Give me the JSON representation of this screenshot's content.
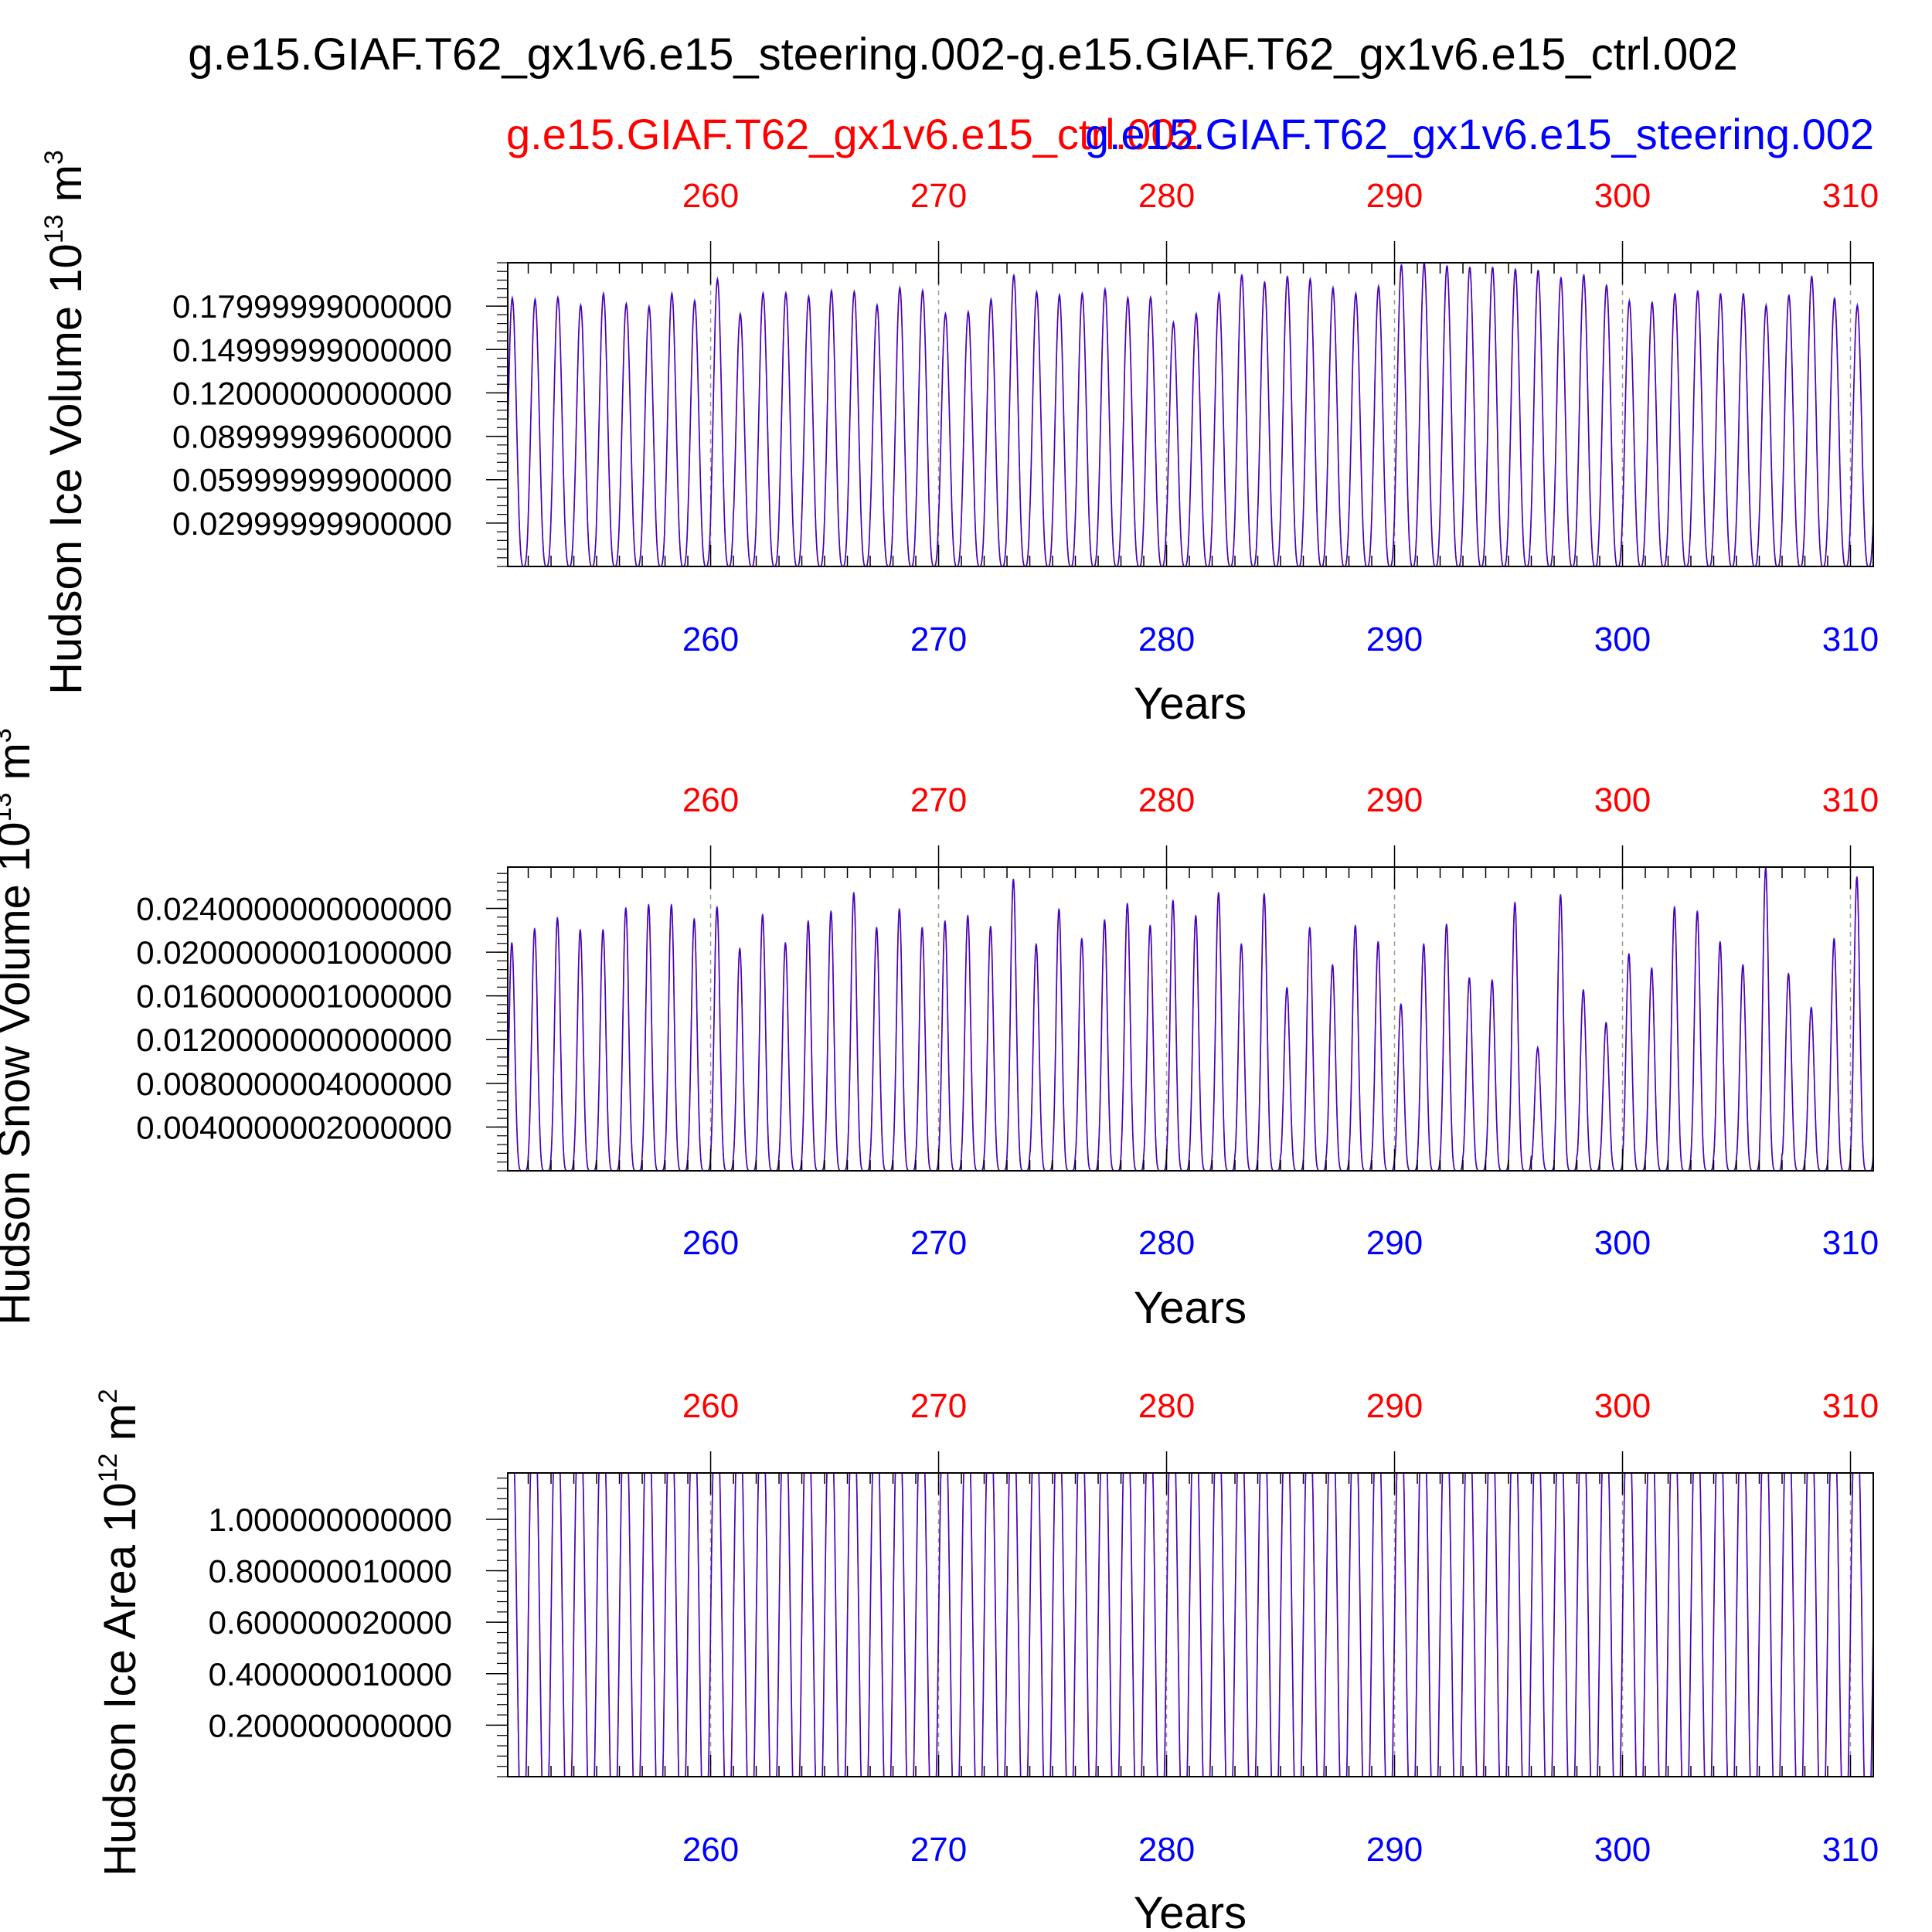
{
  "title": "g.e15.GIAF.T62_gx1v6.e15_steering.002-g.e15.GIAF.T62_gx1v6.e15_ctrl.002",
  "legend": {
    "ctrl_label": "g.e15.GIAF.T62_gx1v6.e15_ctrl.002",
    "steering_label": "g.e15.GIAF.T62_gx1v6.e15_steering.002"
  },
  "colors": {
    "ctrl": "#ff0000",
    "steering": "#0000ff",
    "axis": "#000000",
    "grid": "#999999"
  },
  "chart_data": [
    {
      "type": "line",
      "ylabel": "Hudson Ice Volume 10",
      "ylabel_exp": "13",
      "ylabel_unit": " m",
      "ylabel_unit_exp": "3",
      "xlabel": "Years",
      "xlim": [
        251.1,
        311.0
      ],
      "ylim": [
        0.0,
        0.21
      ],
      "x_ticks": [
        260,
        270,
        280,
        290,
        300,
        310
      ],
      "x_tick_labels": [
        "260",
        "270",
        "280",
        "290",
        "300",
        "310"
      ],
      "y_ticks": [
        0.029999999,
        0.059999999,
        0.089999996,
        0.12,
        0.1499999,
        0.1799999
      ],
      "y_tick_labels": [
        "0.02999999900000",
        "0.05999999900000",
        "0.08999999600000",
        "0.12000000000000",
        "0.14999999000000",
        "0.17999999000000"
      ],
      "series": [
        {
          "name": "g.e15.GIAF.T62_gx1v6.e15_ctrl.002",
          "color": "#ff0000",
          "years": [
            251,
            252,
            253,
            254,
            255,
            256,
            257,
            258,
            259,
            260,
            261,
            262,
            263,
            264,
            265,
            266,
            267,
            268,
            269,
            270,
            271,
            272,
            273,
            274,
            275,
            276,
            277,
            278,
            279,
            280,
            281,
            282,
            283,
            284,
            285,
            286,
            287,
            288,
            289,
            290,
            291,
            292,
            293,
            294,
            295,
            296,
            297,
            298,
            299,
            300,
            301,
            302,
            303,
            304,
            305,
            306,
            307,
            308,
            309,
            310
          ],
          "annual_peaks": [
            0.185,
            0.184,
            0.186,
            0.18,
            0.188,
            0.181,
            0.179,
            0.188,
            0.183,
            0.198,
            0.174,
            0.189,
            0.189,
            0.186,
            0.19,
            0.19,
            0.18,
            0.192,
            0.19,
            0.174,
            0.176,
            0.184,
            0.201,
            0.189,
            0.187,
            0.188,
            0.191,
            0.185,
            0.186,
            0.168,
            0.174,
            0.188,
            0.201,
            0.196,
            0.2,
            0.198,
            0.192,
            0.188,
            0.193,
            0.208,
            0.21,
            0.208,
            0.207,
            0.207,
            0.205,
            0.205,
            0.199,
            0.201,
            0.194,
            0.183,
            0.182,
            0.188,
            0.19,
            0.188,
            0.188,
            0.18,
            0.187,
            0.2,
            0.185,
            0.18
          ]
        },
        {
          "name": "g.e15.GIAF.T62_gx1v6.e15_steering.002",
          "color": "#0000ff",
          "years": [
            251,
            252,
            253,
            254,
            255,
            256,
            257,
            258,
            259,
            260,
            261,
            262,
            263,
            264,
            265,
            266,
            267,
            268,
            269,
            270,
            271,
            272,
            273,
            274,
            275,
            276,
            277,
            278,
            279,
            280,
            281,
            282,
            283,
            284,
            285,
            286,
            287,
            288,
            289,
            290,
            291,
            292,
            293,
            294,
            295,
            296,
            297,
            298,
            299,
            300,
            301,
            302,
            303,
            304,
            305,
            306,
            307,
            308,
            309,
            310
          ],
          "annual_peaks": [
            0.186,
            0.185,
            0.186,
            0.181,
            0.189,
            0.182,
            0.18,
            0.189,
            0.184,
            0.199,
            0.175,
            0.189,
            0.189,
            0.187,
            0.191,
            0.19,
            0.181,
            0.193,
            0.191,
            0.175,
            0.176,
            0.185,
            0.202,
            0.19,
            0.188,
            0.189,
            0.192,
            0.186,
            0.186,
            0.169,
            0.175,
            0.189,
            0.202,
            0.197,
            0.201,
            0.199,
            0.193,
            0.189,
            0.194,
            0.209,
            0.21,
            0.208,
            0.207,
            0.207,
            0.206,
            0.205,
            0.2,
            0.202,
            0.195,
            0.184,
            0.183,
            0.189,
            0.191,
            0.189,
            0.189,
            0.181,
            0.188,
            0.201,
            0.186,
            0.181
          ]
        }
      ]
    },
    {
      "type": "line",
      "ylabel": "Hudson Snow Volume 10",
      "ylabel_exp": "13",
      "ylabel_unit": " m",
      "ylabel_unit_exp": "3",
      "xlabel": "Years",
      "xlim": [
        251.1,
        311.0
      ],
      "ylim": [
        0.0,
        0.02778
      ],
      "x_ticks": [
        260,
        270,
        280,
        290,
        300,
        310
      ],
      "x_tick_labels": [
        "260",
        "270",
        "280",
        "290",
        "300",
        "310"
      ],
      "y_ticks": [
        0.0040000002,
        0.0080000004,
        0.012,
        0.0160000001,
        0.0200000001,
        0.024
      ],
      "y_tick_labels": [
        "0.0040000002000000",
        "0.0080000004000000",
        "0.0120000000000000",
        "0.0160000001000000",
        "0.0200000001000000",
        "0.0240000000000000"
      ],
      "series": [
        {
          "name": "g.e15.GIAF.T62_gx1v6.e15_ctrl.002",
          "color": "#ff0000",
          "years": [
            251,
            252,
            253,
            254,
            255,
            256,
            257,
            258,
            259,
            260,
            261,
            262,
            263,
            264,
            265,
            266,
            267,
            268,
            269,
            270,
            271,
            272,
            273,
            274,
            275,
            276,
            277,
            278,
            279,
            280,
            281,
            282,
            283,
            284,
            285,
            286,
            287,
            288,
            289,
            290,
            291,
            292,
            293,
            294,
            295,
            296,
            297,
            298,
            299,
            300,
            301,
            302,
            303,
            304,
            305,
            306,
            307,
            308,
            309,
            310
          ],
          "annual_peaks": [
            0.0208,
            0.0221,
            0.0231,
            0.022,
            0.022,
            0.024,
            0.0243,
            0.0243,
            0.023,
            0.0241,
            0.0203,
            0.0234,
            0.0208,
            0.0228,
            0.0237,
            0.0254,
            0.0222,
            0.0239,
            0.0222,
            0.0228,
            0.0233,
            0.0223,
            0.0267,
            0.0207,
            0.0239,
            0.0212,
            0.0229,
            0.0244,
            0.0224,
            0.0247,
            0.0233,
            0.0254,
            0.0207,
            0.0253,
            0.0167,
            0.0222,
            0.0188,
            0.0224,
            0.0209,
            0.0152,
            0.0207,
            0.0225,
            0.0176,
            0.0174,
            0.0245,
            0.0112,
            0.0252,
            0.0165,
            0.0135,
            0.0198,
            0.0185,
            0.0241,
            0.0237,
            0.0209,
            0.0188,
            0.0278,
            0.018,
            0.0149,
            0.0212,
            0.0269
          ]
        },
        {
          "name": "g.e15.GIAF.T62_gx1v6.e15_steering.002",
          "color": "#0000ff",
          "years": [
            251,
            252,
            253,
            254,
            255,
            256,
            257,
            258,
            259,
            260,
            261,
            262,
            263,
            264,
            265,
            266,
            267,
            268,
            269,
            270,
            271,
            272,
            273,
            274,
            275,
            276,
            277,
            278,
            279,
            280,
            281,
            282,
            283,
            284,
            285,
            286,
            287,
            288,
            289,
            290,
            291,
            292,
            293,
            294,
            295,
            296,
            297,
            298,
            299,
            300,
            301,
            302,
            303,
            304,
            305,
            306,
            307,
            308,
            309,
            310
          ],
          "annual_peaks": [
            0.0209,
            0.0222,
            0.0232,
            0.0221,
            0.0221,
            0.0241,
            0.0244,
            0.0244,
            0.0231,
            0.0242,
            0.0204,
            0.0235,
            0.0209,
            0.0229,
            0.0238,
            0.0255,
            0.0223,
            0.024,
            0.0223,
            0.0229,
            0.0234,
            0.0224,
            0.0267,
            0.0208,
            0.024,
            0.0213,
            0.023,
            0.0245,
            0.0225,
            0.0248,
            0.0234,
            0.0255,
            0.0208,
            0.0254,
            0.0168,
            0.0223,
            0.0189,
            0.0225,
            0.021,
            0.0153,
            0.0208,
            0.0226,
            0.0177,
            0.0175,
            0.0246,
            0.0113,
            0.0253,
            0.0166,
            0.0136,
            0.0199,
            0.0186,
            0.0242,
            0.0238,
            0.021,
            0.0189,
            0.0277,
            0.0181,
            0.015,
            0.0213,
            0.0269
          ]
        }
      ]
    },
    {
      "type": "line",
      "ylabel": "Hudson Ice Area 10",
      "ylabel_exp": "12",
      "ylabel_unit": " m",
      "ylabel_unit_exp": "2",
      "xlabel": "Years",
      "xlim": [
        251.1,
        311.0
      ],
      "ylim": [
        0.0,
        1.18
      ],
      "x_ticks": [
        260,
        270,
        280,
        290,
        300,
        310
      ],
      "x_tick_labels": [
        "260",
        "270",
        "280",
        "290",
        "300",
        "310"
      ],
      "y_ticks": [
        0.2,
        0.40000001,
        0.60000002,
        0.80000001,
        1.0
      ],
      "y_tick_labels": [
        "0.200000000000",
        "0.400000010000",
        "0.600000020000",
        "0.800000010000",
        "1.000000000000"
      ],
      "series": [
        {
          "name": "g.e15.GIAF.T62_gx1v6.e15_ctrl.002",
          "color": "#ff0000",
          "years": [
            251,
            252,
            253,
            254,
            255,
            256,
            257,
            258,
            259,
            260,
            261,
            262,
            263,
            264,
            265,
            266,
            267,
            268,
            269,
            270,
            271,
            272,
            273,
            274,
            275,
            276,
            277,
            278,
            279,
            280,
            281,
            282,
            283,
            284,
            285,
            286,
            287,
            288,
            289,
            290,
            291,
            292,
            293,
            294,
            295,
            296,
            297,
            298,
            299,
            300,
            301,
            302,
            303,
            304,
            305,
            306,
            307,
            308,
            309,
            310
          ],
          "annual_peaks": [
            1.18,
            1.18,
            1.18,
            1.18,
            1.18,
            1.18,
            1.18,
            1.18,
            1.18,
            1.18,
            1.18,
            1.18,
            1.18,
            1.18,
            1.18,
            1.18,
            1.18,
            1.18,
            1.18,
            1.18,
            1.18,
            1.18,
            1.18,
            1.18,
            1.18,
            1.18,
            1.18,
            1.18,
            1.18,
            1.18,
            1.18,
            1.18,
            1.18,
            1.18,
            1.18,
            1.18,
            1.18,
            1.18,
            1.18,
            1.18,
            1.18,
            1.18,
            1.18,
            1.18,
            1.18,
            1.18,
            1.18,
            1.18,
            1.18,
            1.18,
            1.18,
            1.18,
            1.18,
            1.18,
            1.18,
            1.18,
            1.18,
            1.18,
            1.18,
            1.18
          ]
        },
        {
          "name": "g.e15.GIAF.T62_gx1v6.e15_steering.002",
          "color": "#0000ff",
          "years": [
            251,
            252,
            253,
            254,
            255,
            256,
            257,
            258,
            259,
            260,
            261,
            262,
            263,
            264,
            265,
            266,
            267,
            268,
            269,
            270,
            271,
            272,
            273,
            274,
            275,
            276,
            277,
            278,
            279,
            280,
            281,
            282,
            283,
            284,
            285,
            286,
            287,
            288,
            289,
            290,
            291,
            292,
            293,
            294,
            295,
            296,
            297,
            298,
            299,
            300,
            301,
            302,
            303,
            304,
            305,
            306,
            307,
            308,
            309,
            310
          ],
          "annual_peaks": [
            1.18,
            1.18,
            1.18,
            1.18,
            1.18,
            1.18,
            1.18,
            1.18,
            1.18,
            1.18,
            1.18,
            1.18,
            1.18,
            1.18,
            1.18,
            1.18,
            1.18,
            1.18,
            1.18,
            1.18,
            1.18,
            1.18,
            1.18,
            1.18,
            1.18,
            1.18,
            1.18,
            1.18,
            1.18,
            1.18,
            1.18,
            1.18,
            1.18,
            1.18,
            1.18,
            1.18,
            1.18,
            1.18,
            1.18,
            1.18,
            1.18,
            1.18,
            1.18,
            1.18,
            1.18,
            1.18,
            1.18,
            1.18,
            1.18,
            1.18,
            1.18,
            1.18,
            1.18,
            1.18,
            1.18,
            1.18,
            1.18,
            1.18,
            1.18,
            1.18
          ]
        }
      ]
    }
  ]
}
